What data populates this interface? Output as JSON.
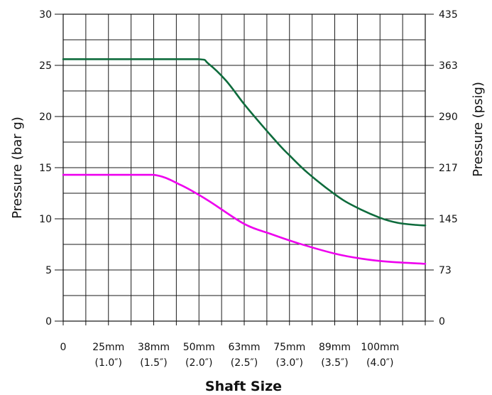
{
  "chart_data": {
    "type": "line",
    "title": "",
    "xlabel": "Shaft Size",
    "ylabel_left": "Pressure (bar g)",
    "ylabel_right": "Pressure (psig)",
    "x_ticks": [
      {
        "top": "0",
        "bottom": ""
      },
      {
        "top": "25mm",
        "bottom": "(1.0″)"
      },
      {
        "top": "38mm",
        "bottom": "(1.5″)"
      },
      {
        "top": "50mm",
        "bottom": "(2.0″)"
      },
      {
        "top": "63mm",
        "bottom": "(2.5″)"
      },
      {
        "top": "75mm",
        "bottom": "(3.0″)"
      },
      {
        "top": "89mm",
        "bottom": "(3.5″)"
      },
      {
        "top": "100mm",
        "bottom": "(4.0″)"
      }
    ],
    "xlim": [
      0,
      4.0
    ],
    "ylim": [
      0,
      30
    ],
    "y_ticks_left": [
      "0",
      "5",
      "10",
      "15",
      "20",
      "25",
      "30"
    ],
    "y_ticks_right": [
      "0",
      "73",
      "145",
      "217",
      "290",
      "363",
      "435"
    ],
    "grid": true,
    "series": [
      {
        "color": "#0e6b3c",
        "x": [
          0.0,
          0.5,
          1.0,
          1.5,
          1.6,
          1.8,
          2.0,
          2.2,
          2.4,
          2.5,
          2.7,
          3.0,
          3.2,
          3.5,
          3.7,
          3.9,
          4.0
        ],
        "values": [
          25.6,
          25.6,
          25.6,
          25.6,
          25.2,
          23.5,
          21.2,
          19.1,
          17.1,
          16.2,
          14.5,
          12.4,
          11.3,
          10.1,
          9.6,
          9.4,
          9.35
        ]
      },
      {
        "color": "#ee00ee",
        "x": [
          0.0,
          0.5,
          1.0,
          1.3,
          1.6,
          2.0,
          2.3,
          2.6,
          3.0,
          3.3,
          3.6,
          4.0
        ],
        "values": [
          14.3,
          14.3,
          14.3,
          13.3,
          11.8,
          9.5,
          8.5,
          7.6,
          6.6,
          6.1,
          5.8,
          5.6
        ]
      }
    ]
  }
}
